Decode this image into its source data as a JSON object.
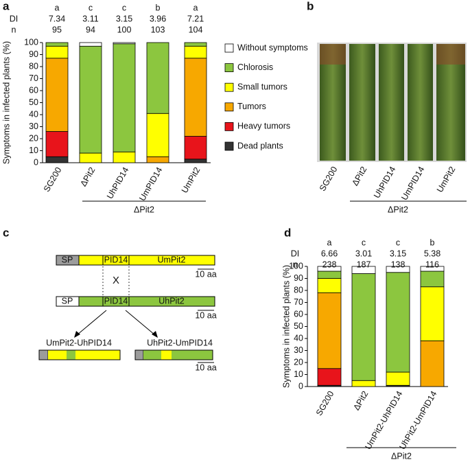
{
  "panel_labels": [
    "a",
    "b",
    "c",
    "d"
  ],
  "chart_data": [
    {
      "type": "stacked-bar",
      "y_label": "Symptoms in infected plants (%)",
      "categories": [
        "SG200",
        "ΔPit2",
        "UhPID14",
        "UmPID14",
        "UmPit2"
      ],
      "group_label": "ΔPit2",
      "header": {
        "letters": [
          "a",
          "c",
          "c",
          "b",
          "a"
        ],
        "rows": [
          {
            "label": "DI",
            "values": [
              7.34,
              3.11,
              3.15,
              3.96,
              7.21
            ]
          },
          {
            "label": "n",
            "values": [
              95,
              94,
              100,
              103,
              104
            ]
          }
        ]
      },
      "ylim": [
        0,
        100
      ],
      "yticks": [
        0,
        10,
        20,
        30,
        40,
        50,
        60,
        70,
        80,
        90,
        100
      ],
      "series": [
        {
          "name": "Dead plants",
          "color": "#333333",
          "values": [
            5,
            0,
            0,
            0,
            3
          ]
        },
        {
          "name": "Heavy tumors",
          "color": "#e8141b",
          "values": [
            21,
            0,
            0,
            0,
            19
          ]
        },
        {
          "name": "Tumors",
          "color": "#f7a800",
          "values": [
            61,
            0,
            0,
            5,
            65
          ]
        },
        {
          "name": "Small tumors",
          "color": "#ffff00",
          "values": [
            10,
            8,
            9,
            36,
            10
          ]
        },
        {
          "name": "Chlorosis",
          "color": "#8cc63f",
          "values": [
            3,
            89,
            90,
            59,
            3
          ]
        },
        {
          "name": "Without symptoms",
          "color": "#ffffff",
          "values": [
            0,
            3,
            1,
            0,
            0
          ]
        }
      ]
    },
    {
      "type": "stacked-bar",
      "y_label": "Symptoms in infected plants (%)",
      "categories": [
        "SG200",
        "ΔPit2",
        "UmPit2-UhPID14",
        "UhPit2-UmPID14"
      ],
      "group_label": "ΔPit2",
      "header": {
        "letters": [
          "a",
          "c",
          "c",
          "b"
        ],
        "rows": [
          {
            "label": "DI",
            "values": [
              6.66,
              3.01,
              3.15,
              5.38
            ]
          },
          {
            "label": "n",
            "values": [
              238,
              187,
              138,
              116
            ]
          }
        ]
      },
      "ylim": [
        0,
        100
      ],
      "yticks": [
        0,
        10,
        20,
        30,
        40,
        50,
        60,
        70,
        80,
        90,
        100
      ],
      "series": [
        {
          "color": "#333333",
          "values": [
            1,
            0,
            1,
            0
          ]
        },
        {
          "color": "#e8141b",
          "values": [
            14,
            0,
            0,
            0
          ]
        },
        {
          "color": "#f7a800",
          "values": [
            63,
            0,
            0,
            38
          ]
        },
        {
          "color": "#ffff00",
          "values": [
            12,
            5,
            11,
            45
          ]
        },
        {
          "color": "#8cc63f",
          "values": [
            6,
            89,
            83,
            13
          ]
        },
        {
          "color": "#ffffff",
          "values": [
            4,
            6,
            5,
            4
          ]
        }
      ]
    }
  ],
  "panel_b": {
    "labels": [
      "SG200",
      "ΔPit2",
      "UhPID14",
      "UmPID14",
      "UmPit2"
    ],
    "group": "ΔPit2"
  },
  "panel_c": {
    "constructs": [
      {
        "sp": "SP",
        "domain": "PID14",
        "name": "UmPit2",
        "scale": "10 aa"
      },
      {
        "sp": "SP",
        "domain": "PID14",
        "name": "UhPit2",
        "scale": "10 aa"
      }
    ],
    "cross": "X",
    "chimeras": [
      "UmPit2-UhPID14",
      "UhPit2-UmPID14"
    ],
    "chimera_scale": "10 aa"
  }
}
